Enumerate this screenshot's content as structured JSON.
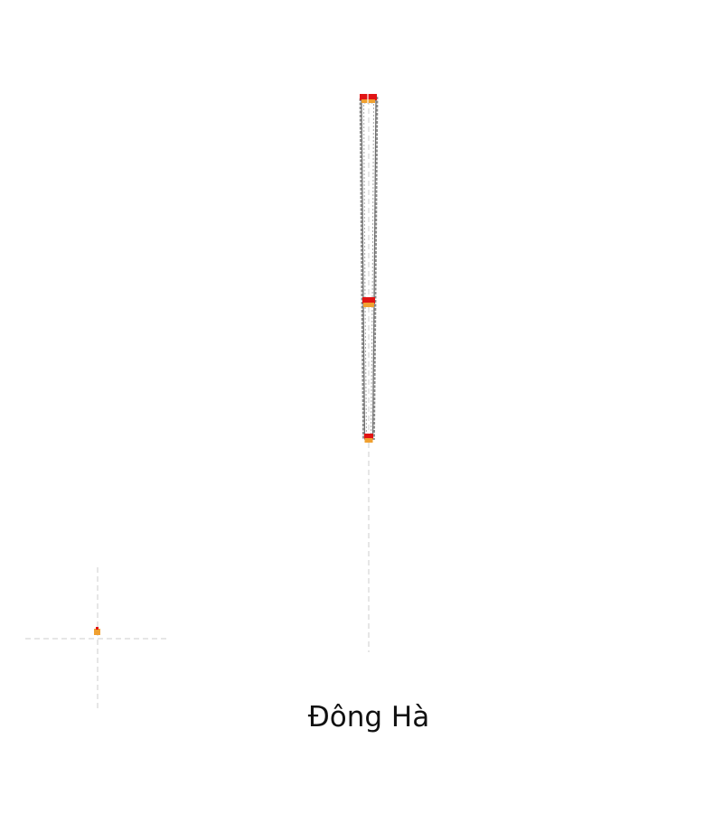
{
  "caption": "Đông Hà",
  "colors": {
    "outline": "#7a7a7a",
    "marker_red": "#e11414",
    "marker_orange": "#f0a030",
    "guide": "#d0d0d0",
    "text": "#111111"
  }
}
